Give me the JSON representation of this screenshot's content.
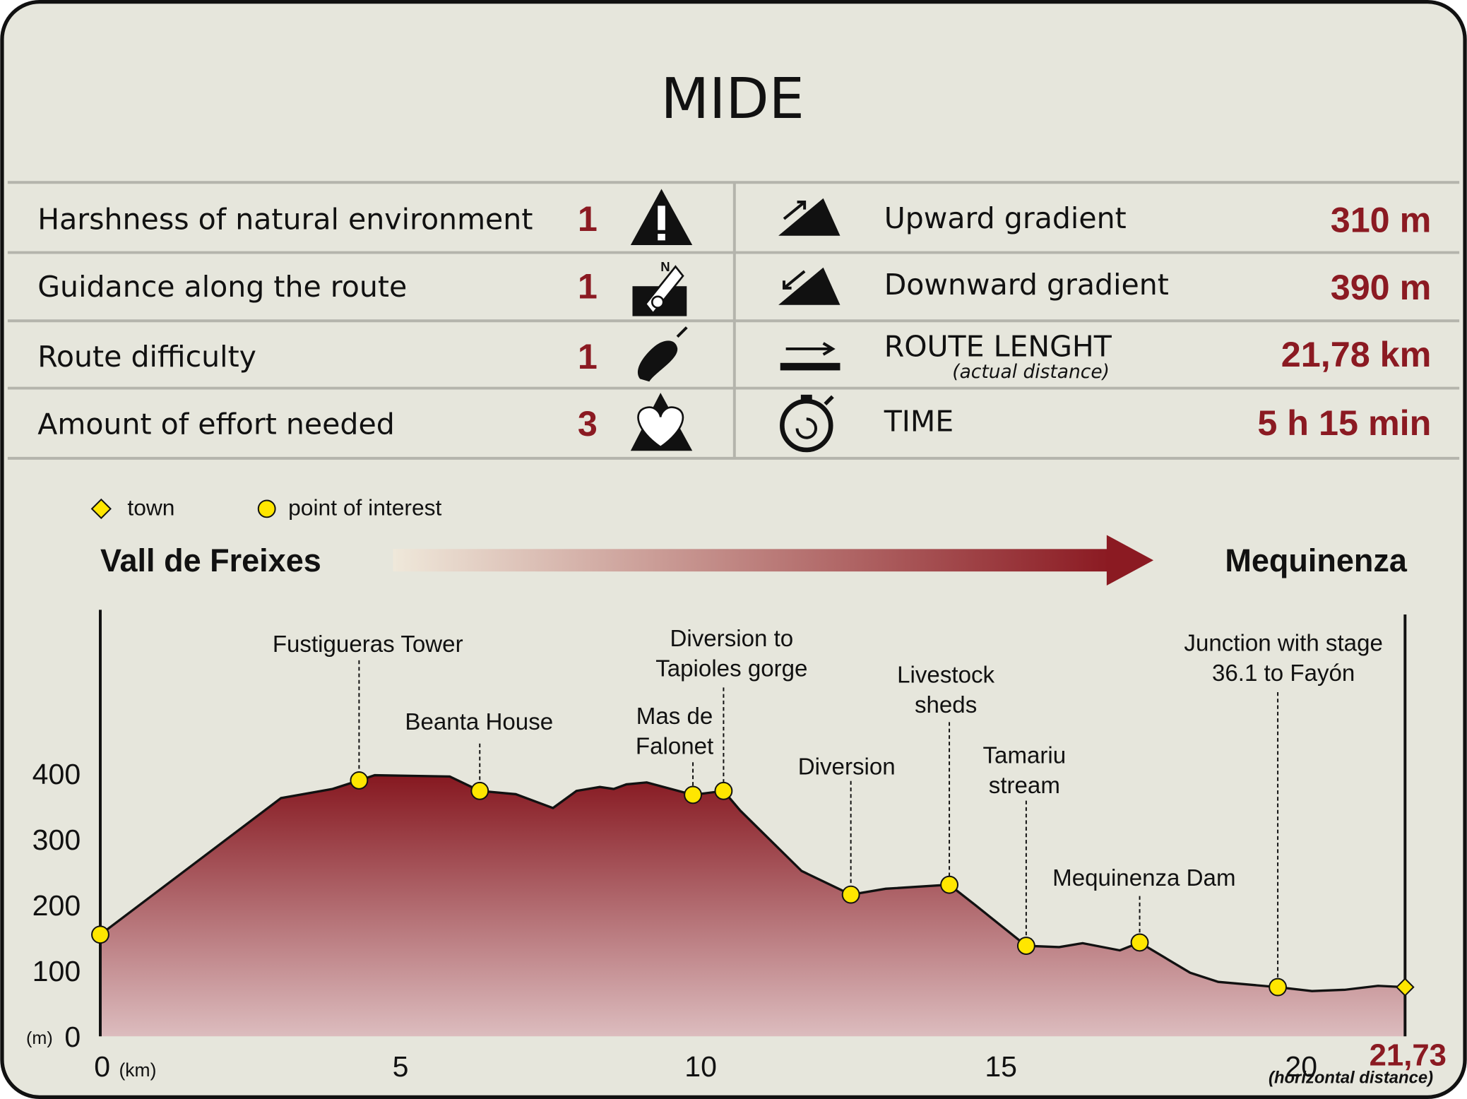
{
  "header": {
    "title": "MIDE"
  },
  "mide": {
    "left": [
      {
        "label": "Harshness of natural environment",
        "value": "1"
      },
      {
        "label": "Guidance along the route",
        "value": "1"
      },
      {
        "label": "Route difficulty",
        "value": "1"
      },
      {
        "label": "Amount of effort needed",
        "value": "3"
      }
    ],
    "right": [
      {
        "label": "Upward gradient",
        "value": "310 m"
      },
      {
        "label": "Downward gradient",
        "value": "390 m"
      },
      {
        "label": "ROUTE LENGHT",
        "note": "(actual distance)",
        "value": "21,78 km"
      },
      {
        "label": "TIME",
        "value": "5 h 15 min"
      }
    ]
  },
  "chart_data": {
    "type": "area",
    "legend": [
      {
        "name": "town",
        "marker": "diamond"
      },
      {
        "name": "point of interest",
        "marker": "circle"
      }
    ],
    "start_label": "Vall de Freixes",
    "end_label": "Mequinenza",
    "x_unit": "(km)",
    "y_unit": "(m)",
    "x_note": "(horizontal distance)",
    "x": [
      0,
      3.01,
      3.87,
      4.31,
      4.57,
      5.82,
      6.32,
      6.92,
      7.54,
      7.93,
      8.32,
      8.55,
      8.76,
      9.1,
      9.87,
      10.38,
      10.66,
      11.68,
      12.5,
      13.08,
      14.14,
      14.56,
      15.42,
      15.97,
      16.36,
      16.98,
      17.31,
      18.15,
      18.62,
      19.61,
      20.18,
      20.73,
      21.28,
      21.73
    ],
    "values": [
      155,
      363,
      377,
      390,
      398,
      396,
      374,
      369,
      348,
      374,
      380,
      377,
      384,
      387,
      368,
      374,
      344,
      252,
      216,
      225,
      231,
      201,
      138,
      136,
      142,
      131,
      143,
      97,
      83,
      75,
      69,
      71,
      77,
      75
    ],
    "xlim": [
      0,
      21.73
    ],
    "ylim": [
      0,
      650
    ],
    "xticks": [
      0,
      5,
      10,
      15,
      20,
      {
        "value": 21.73,
        "label": "21,73"
      }
    ],
    "yticks": [
      0,
      100,
      200,
      300,
      400
    ],
    "color": "#8b1a22",
    "marker_color": "#ffe600",
    "points": [
      {
        "marker": "circle",
        "x": 0,
        "y": 155
      },
      {
        "name": [
          "Fustigueras Tower"
        ],
        "marker": "circle",
        "x": 4.31,
        "y": 390
      },
      {
        "name": [
          "Beanta House"
        ],
        "marker": "circle",
        "x": 6.32,
        "y": 374
      },
      {
        "name": [
          "Mas de",
          "Falonet"
        ],
        "marker": "circle",
        "x": 9.87,
        "y": 368
      },
      {
        "name": [
          "Diversion to",
          "Tapioles gorge"
        ],
        "marker": "circle",
        "x": 10.38,
        "y": 374
      },
      {
        "name": [
          "Diversion"
        ],
        "marker": "circle",
        "x": 12.5,
        "y": 216
      },
      {
        "name": [
          "Livestock",
          "sheds"
        ],
        "marker": "circle",
        "x": 14.14,
        "y": 231
      },
      {
        "name": [
          "Tamariu",
          "stream"
        ],
        "marker": "circle",
        "x": 15.42,
        "y": 138
      },
      {
        "name": [
          "Mequinenza Dam"
        ],
        "marker": "circle",
        "x": 17.31,
        "y": 143
      },
      {
        "name": [
          "Junction with stage",
          "36.1 to Fayón"
        ],
        "marker": "circle",
        "x": 19.61,
        "y": 75
      },
      {
        "marker": "diamond",
        "x": 21.73,
        "y": 75
      }
    ]
  }
}
